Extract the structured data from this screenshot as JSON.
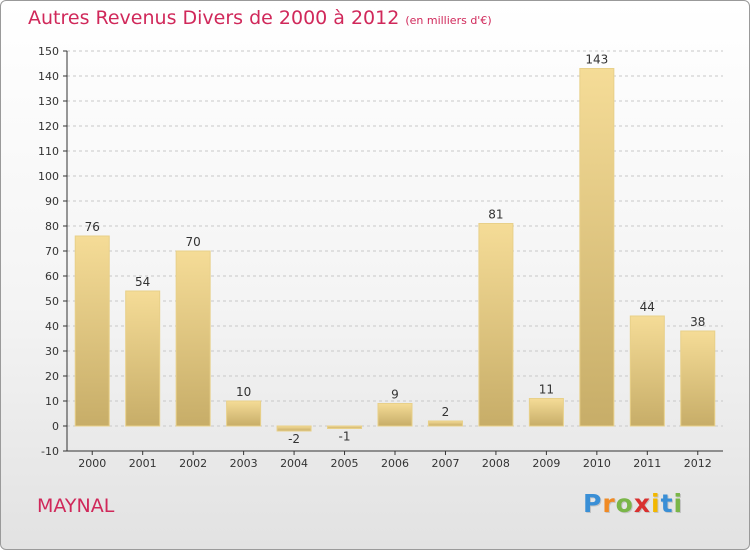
{
  "header": {
    "title": "Autres Revenus Divers de 2000 à 2012",
    "subtitle": "(en milliers d'€)"
  },
  "commune": "MAYNAL",
  "brand": {
    "name": "Proxiti",
    "letters": [
      {
        "ch": "P",
        "color": "#3a8fd6"
      },
      {
        "ch": "r",
        "color": "#f08a24"
      },
      {
        "ch": "o",
        "color": "#7ab648"
      },
      {
        "ch": "x",
        "color": "#d9302f"
      },
      {
        "ch": "i",
        "color": "#f2b700"
      },
      {
        "ch": "t",
        "color": "#3a8fd6"
      },
      {
        "ch": "i",
        "color": "#7ab648"
      }
    ]
  },
  "colors": {
    "title": "#d0285a",
    "bar_light": "#f5dc97",
    "bar_dark": "#c7ad68",
    "axis": "#333333",
    "grid": "#c8c8c8"
  },
  "chart_data": {
    "type": "bar",
    "categories": [
      "2000",
      "2001",
      "2002",
      "2003",
      "2004",
      "2005",
      "2006",
      "2007",
      "2008",
      "2009",
      "2010",
      "2011",
      "2012"
    ],
    "values": [
      76,
      54,
      70,
      10,
      -2,
      -1,
      9,
      2,
      81,
      11,
      143,
      44,
      38
    ],
    "data_labels": [
      "76",
      "54",
      "70",
      "10",
      "-2",
      "-1",
      "9",
      "2",
      "81",
      "11",
      "143",
      "44",
      "38"
    ],
    "title": "Autres Revenus Divers de 2000 à 2012",
    "subtitle": "(en milliers d'€)",
    "xlabel": "",
    "ylabel": "",
    "ylim": [
      -10,
      150
    ],
    "yticks": [
      -10,
      0,
      10,
      20,
      30,
      40,
      50,
      60,
      70,
      80,
      90,
      100,
      110,
      120,
      130,
      140,
      150
    ],
    "grid": true,
    "legend": "none"
  }
}
